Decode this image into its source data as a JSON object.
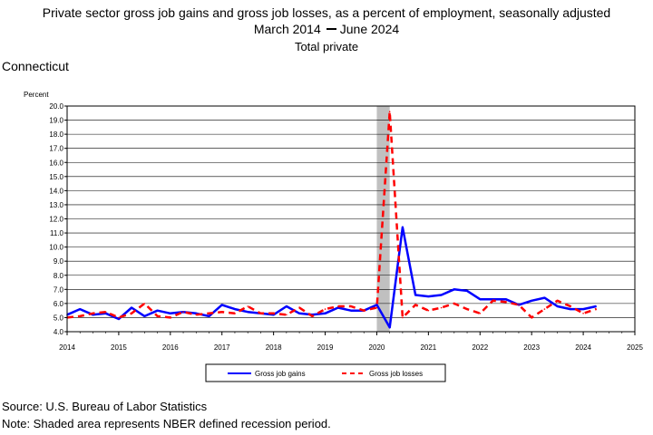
{
  "header": {
    "title": "Private sector gross job gains and gross job losses, as a percent of employment, seasonally adjusted",
    "period_start": "March 2014",
    "period_end": "June 2024",
    "subtitle": "Total private",
    "region": "Connecticut"
  },
  "footer": {
    "source": "Source: U.S. Bureau of Labor Statistics",
    "note": "Note: Shaded area represents NBER defined recession period."
  },
  "colors": {
    "gains": "#0000ff",
    "losses": "#ff0000",
    "recession": "#c0c0c0"
  },
  "chart_data": {
    "type": "line",
    "ylabel": "Percent",
    "ylim": [
      4.0,
      20.0
    ],
    "ytick_step": 1.0,
    "xlim": [
      2014,
      2025
    ],
    "xticks": [
      "2014",
      "2015",
      "2016",
      "2017",
      "2018",
      "2019",
      "2020",
      "2021",
      "2022",
      "2023",
      "2024",
      "2025"
    ],
    "grid": true,
    "legend_position": "bottom-center",
    "recession": {
      "start": 2020.0,
      "end": 2020.25
    },
    "x": [
      2014.0,
      2014.25,
      2014.5,
      2014.75,
      2015.0,
      2015.25,
      2015.5,
      2015.75,
      2016.0,
      2016.25,
      2016.5,
      2016.75,
      2017.0,
      2017.25,
      2017.5,
      2017.75,
      2018.0,
      2018.25,
      2018.5,
      2018.75,
      2019.0,
      2019.25,
      2019.5,
      2019.75,
      2020.0,
      2020.25,
      2020.5,
      2020.75,
      2021.0,
      2021.25,
      2021.5,
      2021.75,
      2022.0,
      2022.25,
      2022.5,
      2022.75,
      2023.0,
      2023.25,
      2023.5,
      2023.75,
      2024.0,
      2024.25
    ],
    "series": [
      {
        "name": "Gross job gains",
        "style": "solid",
        "values": [
          5.2,
          5.6,
          5.2,
          5.3,
          4.9,
          5.7,
          5.1,
          5.5,
          5.3,
          5.4,
          5.3,
          5.1,
          5.9,
          5.6,
          5.4,
          5.3,
          5.2,
          5.8,
          5.3,
          5.2,
          5.3,
          5.7,
          5.5,
          5.5,
          5.9,
          4.3,
          11.4,
          6.6,
          6.5,
          6.6,
          7.0,
          6.9,
          6.3,
          6.3,
          6.3,
          5.9,
          6.2,
          6.4,
          5.8,
          5.6,
          5.6,
          5.8
        ]
      },
      {
        "name": "Gross job losses",
        "style": "dashed",
        "values": [
          5.0,
          5.1,
          5.3,
          5.4,
          5.0,
          5.3,
          6.0,
          5.1,
          5.0,
          5.4,
          5.2,
          5.3,
          5.4,
          5.3,
          5.8,
          5.3,
          5.3,
          5.2,
          5.7,
          5.1,
          5.6,
          5.8,
          5.8,
          5.5,
          5.7,
          19.6,
          5.0,
          5.9,
          5.5,
          5.7,
          6.0,
          5.6,
          5.3,
          6.2,
          6.1,
          5.9,
          5.0,
          5.6,
          6.2,
          5.8,
          5.3,
          5.6
        ]
      }
    ]
  }
}
